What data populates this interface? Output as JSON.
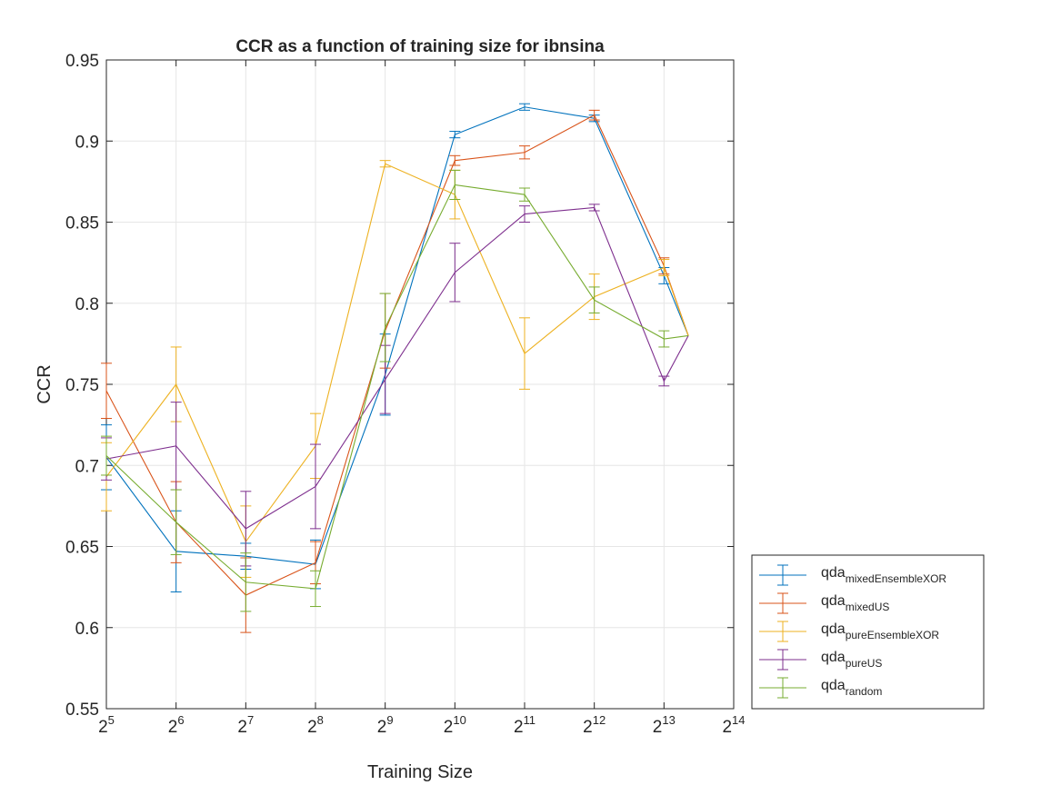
{
  "chart_data": {
    "type": "line",
    "title": "CCR as a function of training size for ibnsina",
    "xlabel": "Training Size",
    "ylabel": "CCR",
    "x_scale": "log2",
    "xlim": [
      32,
      16384
    ],
    "ylim": [
      0.55,
      0.95
    ],
    "grid": true,
    "legend_position": "outside-bottom-right",
    "x_ticks": [
      {
        "base": "2",
        "exp": "5",
        "value": 32
      },
      {
        "base": "2",
        "exp": "6",
        "value": 64
      },
      {
        "base": "2",
        "exp": "7",
        "value": 128
      },
      {
        "base": "2",
        "exp": "8",
        "value": 256
      },
      {
        "base": "2",
        "exp": "9",
        "value": 512
      },
      {
        "base": "2",
        "exp": "10",
        "value": 1024
      },
      {
        "base": "2",
        "exp": "11",
        "value": 2048
      },
      {
        "base": "2",
        "exp": "12",
        "value": 4096
      },
      {
        "base": "2",
        "exp": "13",
        "value": 8192
      },
      {
        "base": "2",
        "exp": "14",
        "value": 16384
      }
    ],
    "y_ticks": [
      {
        "label": "0.55",
        "value": 0.55
      },
      {
        "label": "0.6",
        "value": 0.6
      },
      {
        "label": "0.65",
        "value": 0.65
      },
      {
        "label": "0.7",
        "value": 0.7
      },
      {
        "label": "0.75",
        "value": 0.75
      },
      {
        "label": "0.8",
        "value": 0.8
      },
      {
        "label": "0.85",
        "value": 0.85
      },
      {
        "label": "0.9",
        "value": 0.9
      },
      {
        "label": "0.95",
        "value": 0.95
      }
    ],
    "x": [
      32,
      64,
      128,
      256,
      512,
      1024,
      2048,
      4096,
      8192,
      10434
    ],
    "series": [
      {
        "name_base": "qda",
        "name_sub": "mixedEnsembleXOR",
        "color": "#0072BD",
        "values": [
          0.705,
          0.647,
          0.644,
          0.639,
          0.756,
          0.904,
          0.921,
          0.914,
          0.817,
          0.78
        ],
        "errors": [
          0.02,
          0.025,
          0.008,
          0.015,
          0.025,
          0.002,
          0.002,
          0.002,
          0.005,
          0
        ]
      },
      {
        "name_base": "qda",
        "name_sub": "mixedUS",
        "color": "#D95319",
        "values": [
          0.746,
          0.665,
          0.62,
          0.64,
          0.783,
          0.888,
          0.893,
          0.916,
          0.823,
          0.78
        ],
        "errors": [
          0.017,
          0.025,
          0.023,
          0.013,
          0.023,
          0.003,
          0.004,
          0.003,
          0.005,
          0
        ]
      },
      {
        "name_base": "qda",
        "name_sub": "pureEnsembleXOR",
        "color": "#EDB120",
        "values": [
          0.693,
          0.75,
          0.653,
          0.712,
          0.886,
          0.867,
          0.769,
          0.804,
          0.822,
          0.78
        ],
        "errors": [
          0.021,
          0.023,
          0.022,
          0.02,
          0.002,
          0.015,
          0.022,
          0.014,
          0.005,
          0
        ]
      },
      {
        "name_base": "qda",
        "name_sub": "pureUS",
        "color": "#7E2F8E",
        "values": [
          0.704,
          0.712,
          0.661,
          0.687,
          0.753,
          0.819,
          0.855,
          0.859,
          0.752,
          0.78
        ],
        "errors": [
          0.013,
          0.027,
          0.023,
          0.026,
          0.021,
          0.018,
          0.005,
          0.002,
          0.003,
          0
        ]
      },
      {
        "name_base": "qda",
        "name_sub": "random",
        "color": "#77AC30",
        "values": [
          0.706,
          0.665,
          0.628,
          0.624,
          0.785,
          0.873,
          0.867,
          0.802,
          0.778,
          0.78
        ],
        "errors": [
          0.012,
          0.02,
          0.018,
          0.011,
          0.021,
          0.009,
          0.004,
          0.008,
          0.005,
          0
        ]
      }
    ]
  }
}
